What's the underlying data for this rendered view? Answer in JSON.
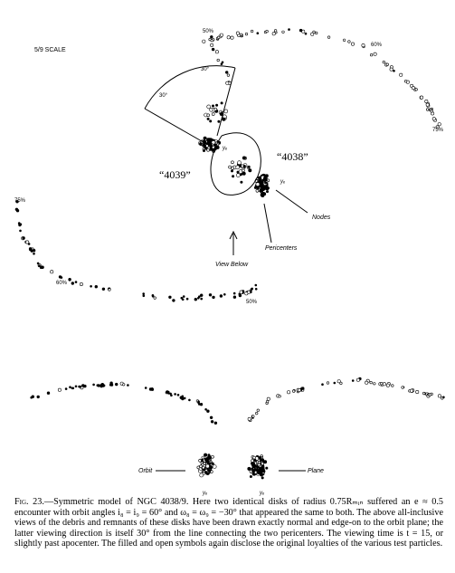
{
  "figure": {
    "scale_label": "5/9 SCALE",
    "top_panel": {
      "galaxy_a_label": "“4039”",
      "galaxy_b_label": "“4038”",
      "angle_label_1": "30°",
      "angle_label_2": "30°",
      "nodes_label": "Nodes",
      "pericenters_label": "Pericenters",
      "view_below_label": "View Below",
      "axis_label_a": "yₑ",
      "axis_label_b": "yₑ",
      "percent_labels": [
        "50%",
        "60%",
        "75%",
        "75%",
        "60%",
        "50%"
      ]
    },
    "bottom_panel": {
      "orbit_label": "Orbit",
      "plane_label": "Plane",
      "axis_label_a": "yₑ",
      "axis_label_b": "yₑ"
    }
  },
  "caption": {
    "lead": "Fig. 23.",
    "text": "—Symmetric model of NGC 4038/9. Here two identical disks of radius 0.75Rₘᵢₙ suffered an e ≈ 0.5 encounter with orbit angles i₈ = i₉ = 60° and ω₈ = ω₉ = −30° that appeared the same to both. The above all-inclusive views of the debris and remnants of these disks have been drawn exactly normal and edge-on to the orbit plane; the latter viewing direction is itself 30° from the line connecting the two pericenters. The viewing time is t = 15, or slightly past apocenter. The filled and open symbols again disclose the original loyalties of the various test particles."
  }
}
